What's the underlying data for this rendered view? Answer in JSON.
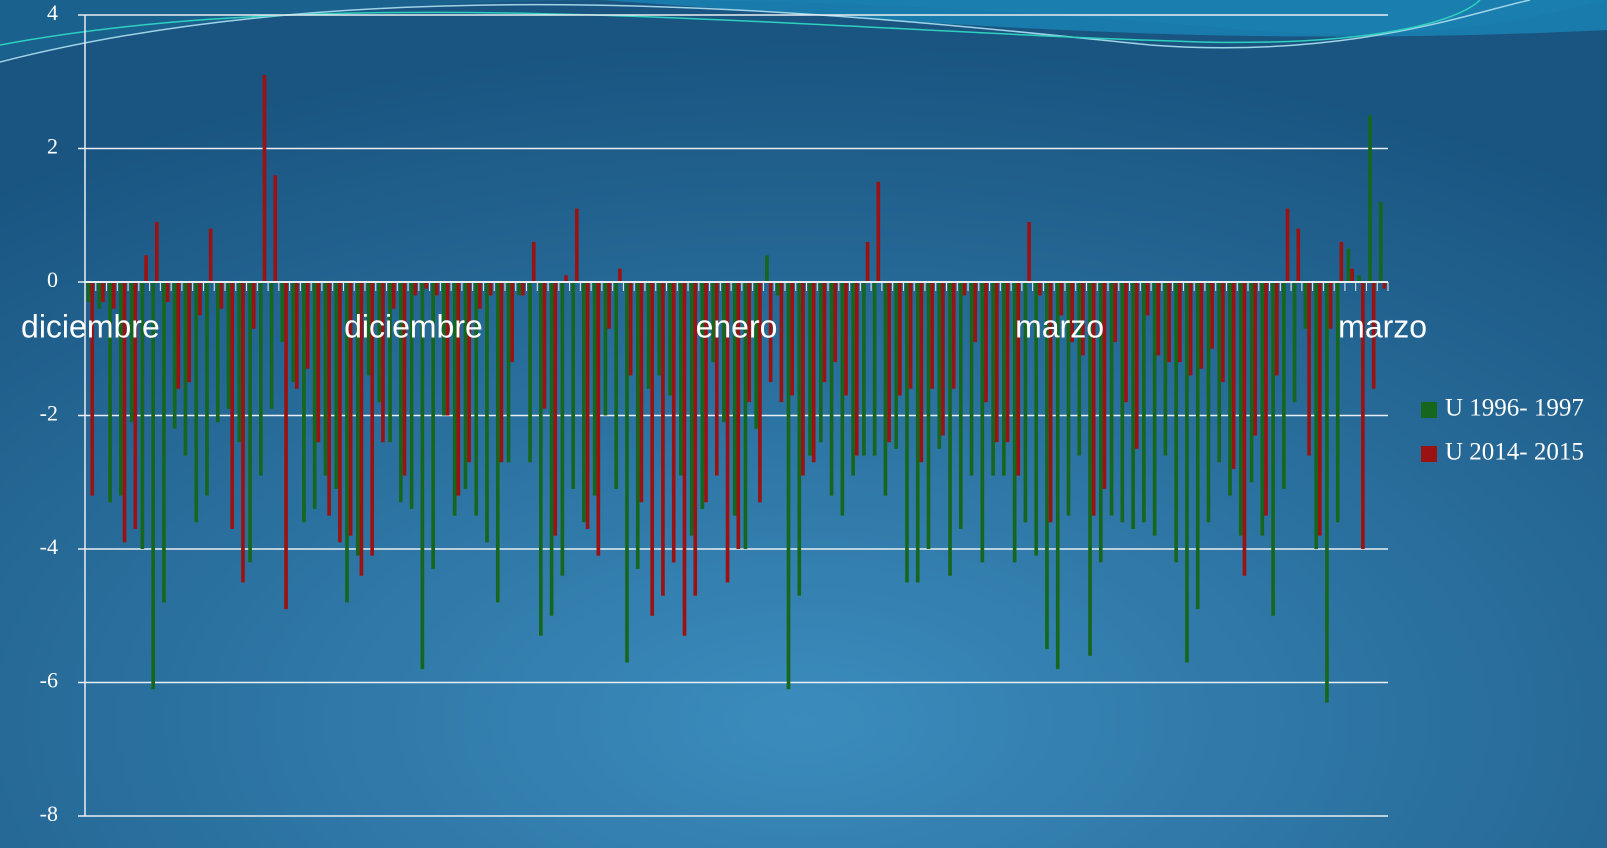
{
  "chart_data": {
    "type": "bar",
    "categories": [
      "diciembre",
      null,
      null,
      null,
      null,
      null,
      null,
      null,
      null,
      null,
      null,
      null,
      null,
      null,
      null,
      null,
      null,
      null,
      null,
      null,
      null,
      null,
      null,
      null,
      null,
      null,
      null,
      null,
      null,
      null,
      "diciembre",
      null,
      null,
      null,
      null,
      null,
      null,
      null,
      null,
      null,
      null,
      null,
      null,
      null,
      null,
      null,
      null,
      null,
      null,
      null,
      null,
      null,
      null,
      null,
      null,
      null,
      null,
      null,
      null,
      null,
      "enero",
      null,
      null,
      null,
      null,
      null,
      null,
      null,
      null,
      null,
      null,
      null,
      null,
      null,
      null,
      null,
      null,
      null,
      null,
      null,
      null,
      null,
      null,
      null,
      null,
      null,
      null,
      null,
      null,
      null,
      "marzo",
      null,
      null,
      null,
      null,
      null,
      null,
      null,
      null,
      null,
      null,
      null,
      null,
      null,
      null,
      null,
      null,
      null,
      null,
      null,
      null,
      null,
      null,
      null,
      null,
      null,
      null,
      null,
      null,
      null,
      "marzo"
    ],
    "series": [
      {
        "name": "U 1996- 1997",
        "color": "#17661d",
        "values": [
          -0.3,
          -0.4,
          -3.3,
          -3.2,
          -2.1,
          -4.0,
          -6.1,
          -4.8,
          -2.2,
          -2.6,
          -3.6,
          -3.2,
          -2.1,
          -1.9,
          -2.4,
          -4.2,
          -2.9,
          -1.9,
          -0.9,
          -1.5,
          -3.6,
          -3.4,
          -2.9,
          -3.1,
          -4.8,
          -4.1,
          -1.4,
          -1.8,
          -2.4,
          -3.3,
          -3.4,
          -5.8,
          -4.3,
          -2.0,
          -3.5,
          -3.1,
          -3.5,
          -3.9,
          -4.8,
          -2.7,
          -0.2,
          -2.7,
          -5.3,
          -5.0,
          -4.4,
          -3.1,
          -3.6,
          -3.2,
          -2.0,
          -3.1,
          -5.7,
          -4.3,
          -1.6,
          -1.4,
          -1.7,
          -2.9,
          -3.8,
          -3.4,
          -1.2,
          -2.1,
          -3.5,
          -4.0,
          -2.2,
          0.4,
          -0.2,
          -6.1,
          -4.7,
          -2.6,
          -2.4,
          -3.2,
          -3.5,
          -2.9,
          -2.6,
          -2.6,
          -3.2,
          -2.5,
          -4.5,
          -4.5,
          -4.0,
          -2.5,
          -4.4,
          -3.7,
          -2.9,
          -4.2,
          -2.9,
          -2.9,
          -4.2,
          -3.6,
          -4.1,
          -5.5,
          -5.8,
          -3.5,
          -2.6,
          -5.6,
          -4.2,
          -3.5,
          -3.6,
          -3.7,
          -3.6,
          -3.8,
          -2.6,
          -4.2,
          -5.7,
          -4.9,
          -3.6,
          -2.7,
          -3.2,
          -3.8,
          -3.0,
          -3.8,
          -5.0,
          -3.1,
          -1.8,
          -0.7,
          -4.0,
          -6.3,
          -3.6,
          0.5,
          0.1,
          2.5,
          1.2
        ]
      },
      {
        "name": "U 2014- 2015",
        "color": "#9a1212",
        "values": [
          -3.2,
          -0.3,
          -0.4,
          -3.9,
          -3.7,
          0.4,
          0.9,
          -0.3,
          -1.6,
          -1.5,
          -0.5,
          0.8,
          -0.4,
          -3.7,
          -4.5,
          -0.7,
          3.1,
          1.6,
          -4.9,
          -1.6,
          -1.3,
          -2.4,
          -3.5,
          -3.9,
          -3.8,
          -4.4,
          -4.1,
          -2.4,
          -0.4,
          -2.9,
          -0.2,
          -0.1,
          -0.2,
          -2.0,
          -3.2,
          -2.7,
          -0.4,
          -0.2,
          -2.7,
          -1.2,
          -0.2,
          0.6,
          -1.9,
          -3.8,
          0.1,
          1.1,
          -3.7,
          -4.1,
          -0.7,
          0.2,
          -1.4,
          -3.3,
          -5.0,
          -4.7,
          -4.2,
          -5.3,
          -4.7,
          -3.3,
          -2.9,
          -4.5,
          -4.0,
          -1.8,
          -3.3,
          -1.5,
          -1.8,
          -1.7,
          -2.9,
          -2.7,
          -1.5,
          -1.2,
          -1.7,
          -2.6,
          0.6,
          1.5,
          -2.4,
          -1.7,
          -1.6,
          -2.7,
          -1.6,
          -2.3,
          -1.6,
          -0.2,
          -0.9,
          -1.8,
          -2.4,
          -2.4,
          -2.9,
          0.9,
          -0.2,
          -3.6,
          -0.5,
          -0.9,
          -1.1,
          -3.5,
          -3.1,
          -0.9,
          -1.8,
          -2.5,
          -0.5,
          -1.1,
          -1.2,
          -1.2,
          -1.4,
          -1.3,
          -1.0,
          -1.5,
          -2.8,
          -4.4,
          -2.3,
          -3.5,
          -1.4,
          1.1,
          0.8,
          -2.6,
          -3.8,
          -0.7,
          0.6,
          0.2,
          -4.0,
          -1.6,
          -0.1
        ]
      }
    ],
    "ylim": [
      -8,
      4
    ],
    "yticks": [
      -8,
      -6,
      -4,
      -2,
      0,
      2,
      4
    ],
    "grid": true,
    "legend": "right"
  }
}
